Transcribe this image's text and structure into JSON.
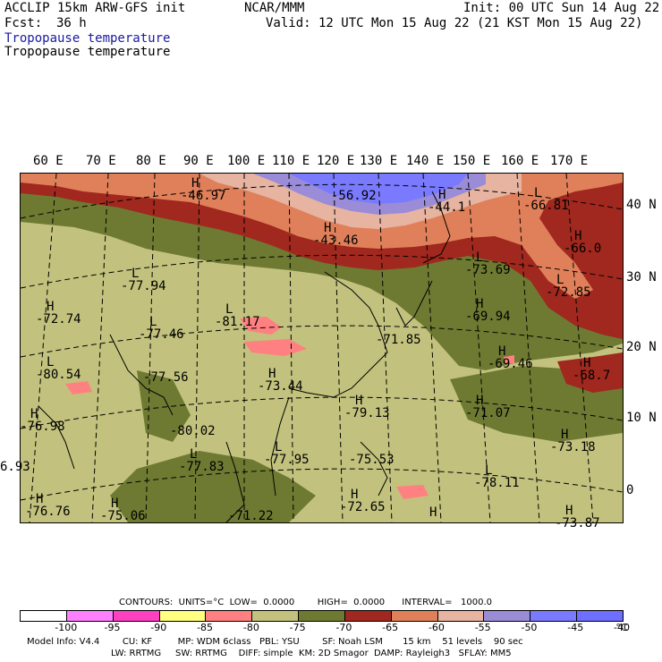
{
  "header": {
    "model": "ACCLIP 15km ARW-GFS init",
    "center": "NCAR/MMM",
    "init": "Init: 00 UTC Sun 14 Aug 22",
    "fcst_label": "Fcst:",
    "fcst_value": "36 h",
    "valid": "Valid: 12 UTC Mon 15 Aug 22 (21 KST Mon 15 Aug 22)",
    "field_blue": "Tropopause temperature",
    "field_black": "Tropopause temperature"
  },
  "lon_labels": [
    "60 E",
    "70 E",
    "80 E",
    "90 E",
    "100 E",
    "110 E",
    "120 E",
    "130 E",
    "140 E",
    "150 E",
    "160 E",
    "170 E"
  ],
  "lat_labels": [
    "40 N",
    "30 N",
    "20 N",
    "10 N",
    "0"
  ],
  "extremes": [
    {
      "letter": "H",
      "value": "-46.97"
    },
    {
      "letter": "",
      "value": "-56.92"
    },
    {
      "letter": "H",
      "value": "-44.1"
    },
    {
      "letter": "L",
      "value": "-66.81"
    },
    {
      "letter": "H",
      "value": "-43.46"
    },
    {
      "letter": "H",
      "value": "-66.0"
    },
    {
      "letter": "L",
      "value": "-77.94"
    },
    {
      "letter": "L",
      "value": "-73.69"
    },
    {
      "letter": "L",
      "value": "-72.85"
    },
    {
      "letter": "H",
      "value": "-72.74"
    },
    {
      "letter": "L",
      "value": "-81.17"
    },
    {
      "letter": "L",
      "value": "-77.46"
    },
    {
      "letter": "H",
      "value": "-69.94"
    },
    {
      "letter": "",
      "value": "-71.85"
    },
    {
      "letter": "H",
      "value": "-69.46"
    },
    {
      "letter": "H",
      "value": "-68.7"
    },
    {
      "letter": "L",
      "value": "-80.54"
    },
    {
      "letter": "",
      "value": "-77.56"
    },
    {
      "letter": "H",
      "value": "-73.44"
    },
    {
      "letter": "H",
      "value": "-79.13"
    },
    {
      "letter": "H",
      "value": "-71.07"
    },
    {
      "letter": "H",
      "value": "-76.98"
    },
    {
      "letter": "",
      "value": "-80.02"
    },
    {
      "letter": "H",
      "value": "-73.18"
    },
    {
      "letter": "",
      "value": "6.93"
    },
    {
      "letter": "L",
      "value": "-77.83"
    },
    {
      "letter": "L",
      "value": "-77.95"
    },
    {
      "letter": "",
      "value": "-75.53"
    },
    {
      "letter": "L",
      "value": "-78.11"
    },
    {
      "letter": "H",
      "value": "-76.76"
    },
    {
      "letter": "H",
      "value": "-75.06"
    },
    {
      "letter": "",
      "value": "-71.22"
    },
    {
      "letter": "H",
      "value": "-72.65"
    },
    {
      "letter": "H",
      "value": ""
    },
    {
      "letter": "H",
      "value": "-73.87"
    }
  ],
  "contours_line": "CONTOURS:  UNITS=°C  LOW=  0.0000        HIGH=  0.0000      INTERVAL=   1000.0",
  "colorbar": {
    "colors": [
      "#ffffff",
      "#ff80ff",
      "#ff40c0",
      "#ffff80",
      "#ff8080",
      "#c2c27e",
      "#6e7a32",
      "#a0281e",
      "#e0805a",
      "#e6b4a0",
      "#9a8cd6",
      "#7a7aff",
      "#6e6eff"
    ],
    "labels": [
      "-100",
      "-95",
      "-90",
      "-85",
      "-80",
      "-75",
      "-70",
      "-65",
      "-60",
      "-55",
      "-50",
      "-45",
      "-40",
      "°C"
    ]
  },
  "footer": {
    "line1": "Model Info: V4.4        CU: KF         MP: WDM 6class   PBL: YSU        SF: Noah LSM       15 km    51 levels    90 sec",
    "line2": "LW: RRTMG     SW: RRTMG    DIFF: simple  KM: 2D Smagor  DAMP: Rayleigh3   SFLAY: MM5"
  },
  "colors": {
    "band_warm_dark": "#a0281e",
    "band_orange": "#e0805a",
    "band_peach": "#e6b4a0",
    "band_lavender": "#9a8cd6",
    "band_blue": "#7a7aff",
    "band_olive": "#6e7a32",
    "band_khaki": "#c2c27e",
    "band_pink": "#ff8080",
    "title_blue": "#1a1aa0"
  }
}
